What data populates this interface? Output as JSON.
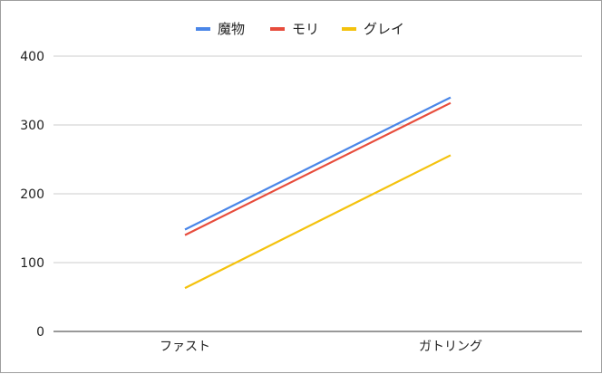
{
  "chart_data": {
    "type": "line",
    "categories": [
      "ファスト",
      "ガトリング"
    ],
    "series": [
      {
        "name": "魔物",
        "values": [
          148,
          340
        ],
        "color": "#4a86e8"
      },
      {
        "name": "モリ",
        "values": [
          140,
          332
        ],
        "color": "#e74c3c"
      },
      {
        "name": "グレイ",
        "values": [
          63,
          256
        ],
        "color": "#f4c20d"
      }
    ],
    "y_ticks": [
      "0",
      "100",
      "200",
      "300",
      "400"
    ],
    "ylim": [
      0,
      400
    ],
    "grid": true,
    "legend_position": "top-center",
    "title": "",
    "xlabel": "",
    "ylabel": ""
  }
}
